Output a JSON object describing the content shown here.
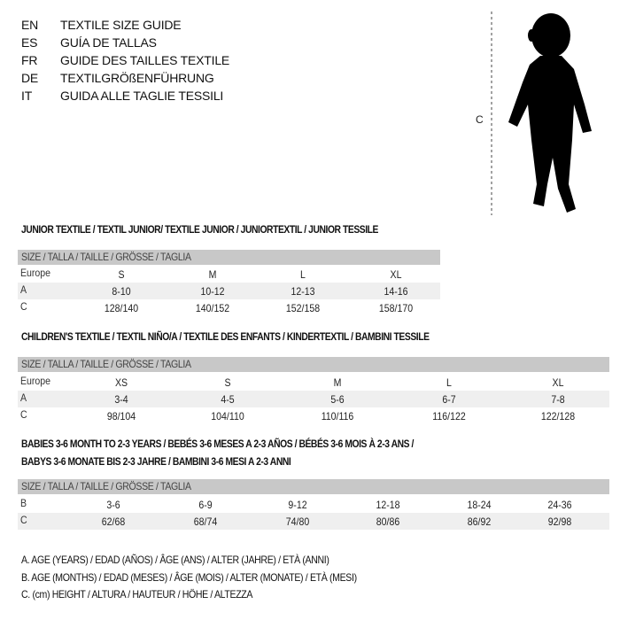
{
  "languages": [
    {
      "code": "EN",
      "title": "TEXTILE SIZE GUIDE"
    },
    {
      "code": "ES",
      "title": "GUÍA DE TALLAS"
    },
    {
      "code": "FR",
      "title": "GUIDE DES TAILLES TEXTILE"
    },
    {
      "code": "DE",
      "title": "TEXTILGRÖßENFÜHRUNG"
    },
    {
      "code": "IT",
      "title": "GUIDA ALLE TAGLIE TESSILI"
    }
  ],
  "figure": {
    "height_label": "C"
  },
  "size_header": "SIZE / TALLA / TAILLE / GRÖSSE / TAGLIA",
  "junior": {
    "title": "JUNIOR TEXTILE / TEXTIL JUNIOR/ TEXTILE JUNIOR / JUNIORTEXTIL / JUNIOR TESSILE",
    "rows": [
      {
        "label": "Europe",
        "values": [
          "S",
          "M",
          "L",
          "XL"
        ]
      },
      {
        "label": "A",
        "values": [
          "8-10",
          "10-12",
          "12-13",
          "14-16"
        ]
      },
      {
        "label": "C",
        "values": [
          "128/140",
          "140/152",
          "152/158",
          "158/170"
        ]
      }
    ]
  },
  "children": {
    "title": "CHILDREN'S TEXTILE / TEXTIL NIÑO/A / TEXTILE DES ENFANTS / KINDERTEXTIL / BAMBINI TESSILE",
    "rows": [
      {
        "label": "Europe",
        "values": [
          "XS",
          "S",
          "M",
          "L",
          "XL"
        ]
      },
      {
        "label": "A",
        "values": [
          "3-4",
          "4-5",
          "5-6",
          "6-7",
          "7-8"
        ]
      },
      {
        "label": "C",
        "values": [
          "98/104",
          "104/110",
          "110/116",
          "116/122",
          "122/128"
        ]
      }
    ]
  },
  "babies": {
    "title_line1": "BABIES 3-6 MONTH TO 2-3 YEARS / BEBÉS 3-6 MESES A 2-3 AÑOS / BÉBÉS 3-6 MOIS À 2-3 ANS /",
    "title_line2": "BABYS 3-6 MONATE BIS 2-3 JAHRE / BAMBINI 3-6 MESI A 2-3 ANNI",
    "rows": [
      {
        "label": "B",
        "values": [
          "3-6",
          "6-9",
          "9-12",
          "12-18",
          "18-24",
          "24-36"
        ]
      },
      {
        "label": "C",
        "values": [
          "62/68",
          "68/74",
          "74/80",
          "80/86",
          "86/92",
          "92/98"
        ]
      }
    ]
  },
  "legend": [
    "A. AGE (YEARS) / EDAD (AÑOS) / ÂGE (ANS) / ALTER (JAHRE) / ETÀ (ANNI)",
    "B. AGE (MONTHS) / EDAD (MESES) / ÂGE (MOIS) / ALTER (MONATE) / ETÀ (MESI)",
    "C. (cm) HEIGHT / ALTURA / HAUTEUR / HÖHE / ALTEZZA"
  ]
}
